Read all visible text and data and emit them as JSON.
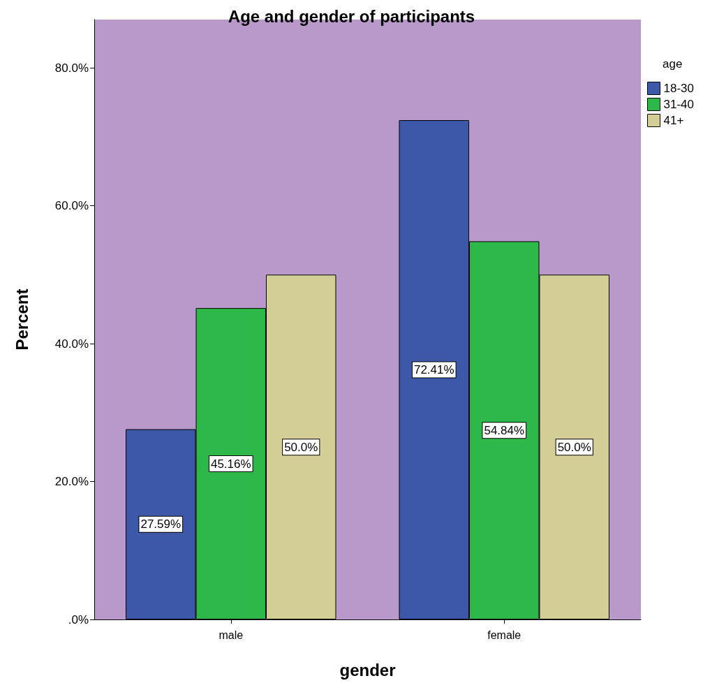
{
  "chart_data": {
    "type": "bar",
    "title": "Age and gender of participants",
    "xlabel": "gender",
    "ylabel": "Percent",
    "legend_title": "age",
    "categories": [
      "male",
      "female"
    ],
    "series": [
      {
        "name": "18-30",
        "color": "#3d58a8",
        "values": [
          27.59,
          72.41
        ],
        "value_labels": [
          "27.59%",
          "72.41%"
        ]
      },
      {
        "name": "31-40",
        "color": "#2fb84a",
        "values": [
          45.16,
          54.84
        ],
        "value_labels": [
          "45.16%",
          "54.84%"
        ]
      },
      {
        "name": "41+",
        "color": "#d3ce96",
        "values": [
          50.0,
          50.0
        ],
        "value_labels": [
          "50.0%",
          "50.0%"
        ]
      }
    ],
    "ylim": [
      0,
      87
    ],
    "yticks": [
      {
        "value": 0,
        "label": ".0%"
      },
      {
        "value": 20,
        "label": "20.0%"
      },
      {
        "value": 40,
        "label": "40.0%"
      },
      {
        "value": 60,
        "label": "60.0%"
      },
      {
        "value": 80,
        "label": "80.0%"
      }
    ],
    "grid": false,
    "legend": "top right"
  }
}
